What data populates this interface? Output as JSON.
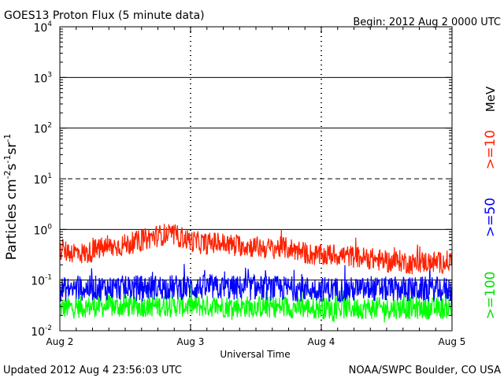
{
  "header": {
    "title": "GOES13 Proton Flux (5 minute data)",
    "begin": "Begin: 2012 Aug 2 0000 UTC"
  },
  "footer": {
    "updated": "Updated 2012 Aug  4 23:56:03 UTC",
    "credit": "NOAA/SWPC Boulder, CO USA"
  },
  "chart_data": {
    "type": "line",
    "title": "GOES13 Proton Flux (5 minute data)",
    "xlabel": "Universal Time",
    "ylabel_base": "Particles cm",
    "ylabel_sup1": "-2",
    "ylabel_mid1": "s",
    "ylabel_sup2": "-1",
    "ylabel_mid2": "sr",
    "ylabel_sup3": "-1",
    "yscale": "log",
    "ylim": [
      0.01,
      10000
    ],
    "xlim_days": [
      0,
      3
    ],
    "y_ticks": [
      {
        "value": 0.01,
        "base": "10",
        "exp": "-2"
      },
      {
        "value": 0.1,
        "base": "10",
        "exp": "-1"
      },
      {
        "value": 1,
        "base": "10",
        "exp": "0"
      },
      {
        "value": 10,
        "base": "10",
        "exp": "1"
      },
      {
        "value": 100,
        "base": "10",
        "exp": "2"
      },
      {
        "value": 1000,
        "base": "10",
        "exp": "3"
      },
      {
        "value": 10000,
        "base": "10",
        "exp": "4"
      }
    ],
    "threshold_lines": [
      {
        "value": 1000,
        "style": "solid"
      },
      {
        "value": 100,
        "style": "solid"
      },
      {
        "value": 10,
        "style": "dashed"
      },
      {
        "value": 1,
        "style": "solid"
      },
      {
        "value": 0.1,
        "style": "solid"
      }
    ],
    "x_ticks": [
      {
        "day": 0,
        "label": "Aug 2"
      },
      {
        "day": 1,
        "label": "Aug 3"
      },
      {
        "day": 2,
        "label": "Aug 4"
      },
      {
        "day": 3,
        "label": "Aug 5"
      }
    ],
    "legend": {
      "unit": "MeV",
      "position": "right"
    },
    "series": [
      {
        "name": ">=10",
        "color": "#ff2000",
        "x_days": [
          0,
          0.1,
          0.2,
          0.3,
          0.4,
          0.5,
          0.6,
          0.7,
          0.8,
          0.9,
          1.0,
          1.1,
          1.2,
          1.3,
          1.4,
          1.5,
          1.6,
          1.7,
          1.8,
          1.9,
          2.0,
          2.1,
          2.2,
          2.3,
          2.4,
          2.5,
          2.6,
          2.7,
          2.8,
          2.9,
          3.0
        ],
        "values": [
          0.38,
          0.36,
          0.33,
          0.42,
          0.45,
          0.5,
          0.58,
          0.7,
          0.8,
          0.75,
          0.6,
          0.52,
          0.55,
          0.5,
          0.48,
          0.45,
          0.42,
          0.44,
          0.4,
          0.33,
          0.3,
          0.32,
          0.3,
          0.28,
          0.26,
          0.23,
          0.24,
          0.21,
          0.23,
          0.22,
          0.24
        ],
        "label": ">=10"
      },
      {
        "name": ">=50",
        "color": "#0000ff",
        "x_days": [
          0,
          0.25,
          0.5,
          0.75,
          1.0,
          1.25,
          1.5,
          1.75,
          2.0,
          2.25,
          2.5,
          2.75,
          3.0
        ],
        "values": [
          0.065,
          0.07,
          0.07,
          0.072,
          0.072,
          0.07,
          0.07,
          0.068,
          0.066,
          0.065,
          0.066,
          0.066,
          0.066
        ],
        "label": ">=50"
      },
      {
        "name": ">=100",
        "color": "#00ff00",
        "x_days": [
          0,
          0.25,
          0.5,
          0.75,
          1.0,
          1.25,
          1.5,
          1.75,
          2.0,
          2.25,
          2.5,
          2.75,
          3.0
        ],
        "values": [
          0.028,
          0.03,
          0.03,
          0.031,
          0.031,
          0.03,
          0.03,
          0.029,
          0.028,
          0.028,
          0.028,
          0.028,
          0.028
        ],
        "label": ">=100"
      }
    ]
  }
}
